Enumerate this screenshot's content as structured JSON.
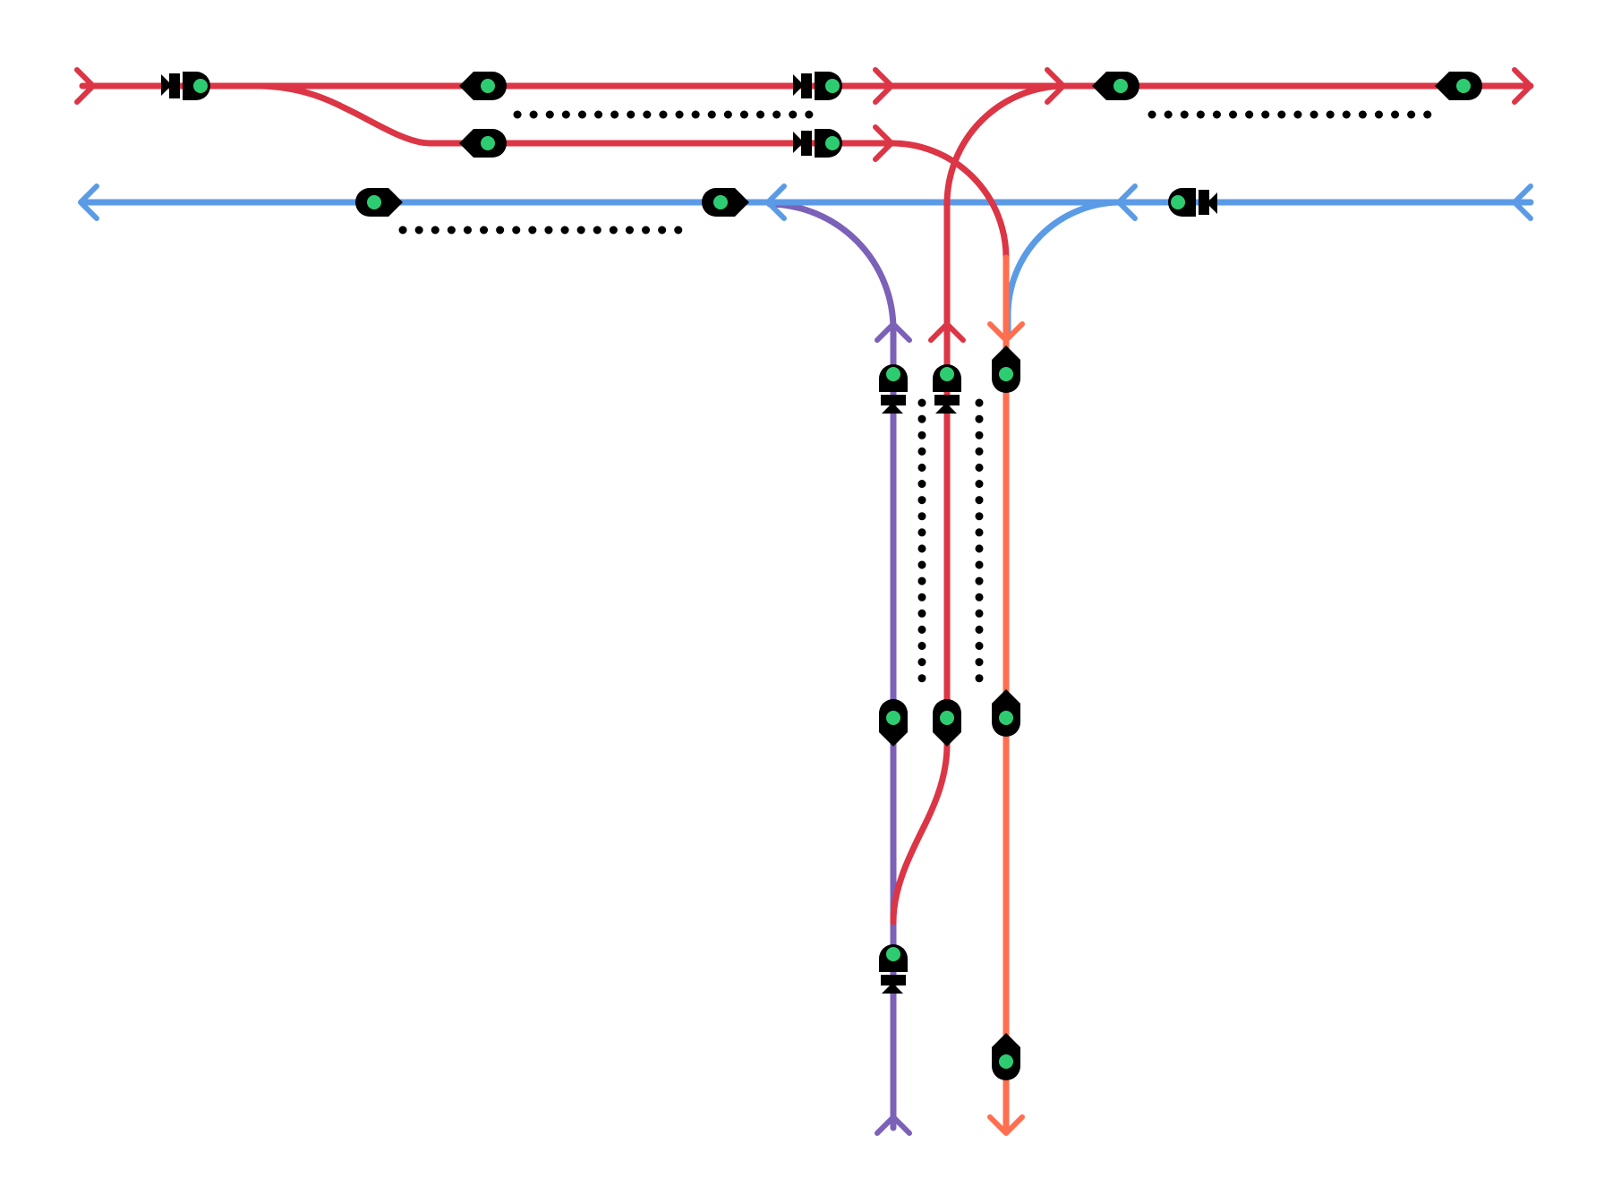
{
  "colors": {
    "red_line": "#dc3545",
    "blue_line": "#5b9be6",
    "purple_line": "#7b61b8",
    "orange_line": "#ff6e4f",
    "signal_body": "#000000",
    "signal_lamp": "#2ecc71",
    "background": "#ffffff"
  },
  "tracks": [
    {
      "id": "red-main-upper",
      "color": "red"
    },
    {
      "id": "red-loop",
      "color": "red"
    },
    {
      "id": "red-curve-to-south",
      "color": "red"
    },
    {
      "id": "red-south-branch",
      "color": "red"
    },
    {
      "id": "blue-main",
      "color": "blue"
    },
    {
      "id": "blue-curve-to-south",
      "color": "blue"
    },
    {
      "id": "purple-south-branch",
      "color": "purple"
    },
    {
      "id": "orange-south-branch",
      "color": "orange"
    }
  ],
  "signals": [
    {
      "id": "sig-01",
      "aspect": "green"
    },
    {
      "id": "sig-02",
      "aspect": "green"
    },
    {
      "id": "sig-03",
      "aspect": "green"
    },
    {
      "id": "sig-04",
      "aspect": "green"
    },
    {
      "id": "sig-05",
      "aspect": "green"
    },
    {
      "id": "sig-06",
      "aspect": "green"
    },
    {
      "id": "sig-07",
      "aspect": "green"
    },
    {
      "id": "sig-08",
      "aspect": "green"
    },
    {
      "id": "sig-09",
      "aspect": "green"
    },
    {
      "id": "sig-10",
      "aspect": "green"
    },
    {
      "id": "sig-11",
      "aspect": "green"
    },
    {
      "id": "sig-12",
      "aspect": "green"
    },
    {
      "id": "sig-13",
      "aspect": "green"
    },
    {
      "id": "sig-14",
      "aspect": "green"
    },
    {
      "id": "sig-15",
      "aspect": "green"
    },
    {
      "id": "sig-16",
      "aspect": "green"
    },
    {
      "id": "sig-17",
      "aspect": "green"
    },
    {
      "id": "sig-18",
      "aspect": "green"
    }
  ],
  "icons": [
    "track-end-arrow-icon",
    "signal-icon",
    "platform-dotted-line"
  ]
}
